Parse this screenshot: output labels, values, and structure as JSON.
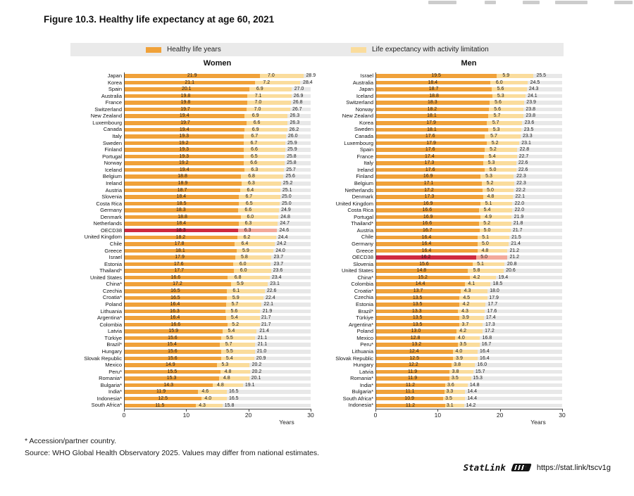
{
  "title": "Figure 10.3. Healthy life expectancy at age 60, 2021",
  "legend": {
    "healthy": "Healthy life years",
    "limitation": "Life expectancy with activity limitation"
  },
  "colors": {
    "healthy": "#F0A139",
    "limitation": "#FADC9C",
    "highlight_healthy": "#CF2A3F",
    "highlight_limitation": "#F3A99B",
    "row_band": "#E8E8E8",
    "legend_bg": "#EAEAEA"
  },
  "footnotes": [
    "* Accession/partner country.",
    "Source: WHO Global Health Observatory 2025. Values may differ from national estimates."
  ],
  "statlink": {
    "label": "StatLink",
    "url": "https://stat.link/tscv1g"
  },
  "chart_data": [
    {
      "type": "bar",
      "orientation": "horizontal",
      "stacked": true,
      "title": "Women",
      "xlabel": "Years",
      "xlim": [
        0,
        30
      ],
      "xticks": [
        0,
        10,
        20,
        30
      ],
      "highlight_row": "OECD38",
      "series_names": [
        "Healthy life years",
        "Life expectancy with activity limitation",
        "Total life expectancy"
      ],
      "rows": [
        [
          "Japan",
          21.9,
          7.0,
          28.9
        ],
        [
          "Korea",
          21.1,
          7.2,
          28.4
        ],
        [
          "Spain",
          20.1,
          6.9,
          27.0
        ],
        [
          "Australia",
          19.8,
          7.1,
          26.9
        ],
        [
          "France",
          19.8,
          7.0,
          26.8
        ],
        [
          "Switzerland",
          19.7,
          7.0,
          26.7
        ],
        [
          "New Zealand",
          19.4,
          6.9,
          26.3
        ],
        [
          "Luxembourg",
          19.7,
          6.6,
          26.3
        ],
        [
          "Canada",
          19.4,
          6.9,
          26.2
        ],
        [
          "Italy",
          19.3,
          6.7,
          26.0
        ],
        [
          "Sweden",
          19.2,
          6.7,
          25.9
        ],
        [
          "Finland",
          19.3,
          6.6,
          25.9
        ],
        [
          "Portugal",
          19.3,
          6.5,
          25.8
        ],
        [
          "Norway",
          19.2,
          6.6,
          25.8
        ],
        [
          "Iceland",
          19.4,
          6.3,
          25.7
        ],
        [
          "Belgium",
          18.8,
          6.8,
          25.6
        ],
        [
          "Ireland",
          18.9,
          6.3,
          25.2
        ],
        [
          "Austria",
          18.7,
          6.4,
          25.1
        ],
        [
          "Slovenia",
          18.4,
          6.7,
          25.0
        ],
        [
          "Costa Rica",
          18.5,
          6.5,
          25.0
        ],
        [
          "Germany",
          18.3,
          6.6,
          24.9
        ],
        [
          "Denmark",
          18.8,
          6.0,
          24.8
        ],
        [
          "Netherlands",
          18.4,
          6.3,
          24.7
        ],
        [
          "OECD38",
          18.3,
          6.3,
          24.6
        ],
        [
          "United Kingdom",
          18.2,
          6.2,
          24.4
        ],
        [
          "Chile",
          17.8,
          6.4,
          24.2
        ],
        [
          "Greece",
          18.1,
          5.9,
          24.0
        ],
        [
          "Israel",
          17.9,
          5.8,
          23.7
        ],
        [
          "Estonia",
          17.6,
          6.0,
          23.7
        ],
        [
          "Thailand*",
          17.7,
          6.0,
          23.6
        ],
        [
          "United States",
          16.6,
          6.8,
          23.4
        ],
        [
          "China*",
          17.2,
          5.9,
          23.1
        ],
        [
          "Czechia",
          16.5,
          6.1,
          22.6
        ],
        [
          "Croatia*",
          16.5,
          5.9,
          22.4
        ],
        [
          "Poland",
          16.4,
          5.7,
          22.1
        ],
        [
          "Lithuania",
          16.3,
          5.6,
          21.9
        ],
        [
          "Argentina*",
          16.4,
          5.4,
          21.7
        ],
        [
          "Colombia",
          16.6,
          5.2,
          21.7
        ],
        [
          "Latvia",
          15.9,
          5.4,
          21.4
        ],
        [
          "Türkiye",
          15.6,
          5.5,
          21.1
        ],
        [
          "Brazil*",
          15.4,
          5.7,
          21.1
        ],
        [
          "Hungary",
          15.6,
          5.5,
          21.0
        ],
        [
          "Slovak Republic",
          15.6,
          5.4,
          20.9
        ],
        [
          "Mexico",
          14.9,
          5.3,
          20.2
        ],
        [
          "Peru*",
          15.5,
          4.8,
          20.2
        ],
        [
          "Romania*",
          15.3,
          4.8,
          20.1
        ],
        [
          "Bulgaria*",
          14.3,
          4.8,
          19.1
        ],
        [
          "India*",
          11.9,
          4.6,
          16.5
        ],
        [
          "Indonesia*",
          12.5,
          4.0,
          16.5
        ],
        [
          "South Africa*",
          11.5,
          4.3,
          15.8
        ]
      ]
    },
    {
      "type": "bar",
      "orientation": "horizontal",
      "stacked": true,
      "title": "Men",
      "xlabel": "Years",
      "xlim": [
        0,
        30
      ],
      "xticks": [
        0,
        10,
        20,
        30
      ],
      "highlight_row": "OECD38",
      "series_names": [
        "Healthy life years",
        "Life expectancy with activity limitation",
        "Total life expectancy"
      ],
      "rows": [
        [
          "Israel",
          19.5,
          5.9,
          25.5
        ],
        [
          "Australia",
          18.4,
          6.0,
          24.5
        ],
        [
          "Japan",
          18.7,
          5.6,
          24.3
        ],
        [
          "Iceland",
          18.8,
          5.3,
          24.1
        ],
        [
          "Switzerland",
          18.3,
          5.6,
          23.9
        ],
        [
          "Norway",
          18.2,
          5.6,
          23.8
        ],
        [
          "New Zealand",
          18.1,
          5.7,
          23.8
        ],
        [
          "Korea",
          17.9,
          5.7,
          23.6
        ],
        [
          "Sweden",
          18.1,
          5.3,
          23.5
        ],
        [
          "Canada",
          17.6,
          5.7,
          23.3
        ],
        [
          "Luxembourg",
          17.9,
          5.2,
          23.1
        ],
        [
          "Spain",
          17.6,
          5.2,
          22.8
        ],
        [
          "France",
          17.4,
          5.4,
          22.7
        ],
        [
          "Italy",
          17.3,
          5.3,
          22.6
        ],
        [
          "Ireland",
          17.6,
          5.0,
          22.6
        ],
        [
          "Finland",
          16.9,
          5.3,
          22.3
        ],
        [
          "Belgium",
          17.1,
          5.2,
          22.3
        ],
        [
          "Netherlands",
          17.2,
          5.0,
          22.2
        ],
        [
          "Denmark",
          17.3,
          4.8,
          22.1
        ],
        [
          "United Kingdom",
          16.9,
          5.1,
          22.0
        ],
        [
          "Costa Rica",
          16.6,
          5.4,
          22.0
        ],
        [
          "Portugal",
          16.9,
          4.9,
          21.9
        ],
        [
          "Thailand*",
          16.6,
          5.2,
          21.8
        ],
        [
          "Austria",
          16.7,
          5.0,
          21.7
        ],
        [
          "Chile",
          16.4,
          5.1,
          21.5
        ],
        [
          "Germany",
          16.4,
          5.0,
          21.4
        ],
        [
          "Greece",
          16.4,
          4.8,
          21.2
        ],
        [
          "OECD38",
          16.2,
          5.0,
          21.2
        ],
        [
          "Slovenia",
          15.6,
          5.1,
          20.8
        ],
        [
          "United States",
          14.8,
          5.8,
          20.6
        ],
        [
          "China*",
          15.2,
          4.2,
          19.4
        ],
        [
          "Colombia",
          14.4,
          4.1,
          18.5
        ],
        [
          "Croatia*",
          13.7,
          4.3,
          18.0
        ],
        [
          "Czechia",
          13.5,
          4.5,
          17.9
        ],
        [
          "Estonia",
          13.5,
          4.2,
          17.7
        ],
        [
          "Brazil*",
          13.3,
          4.3,
          17.6
        ],
        [
          "Türkiye",
          13.5,
          3.9,
          17.4
        ],
        [
          "Argentina*",
          13.5,
          3.7,
          17.3
        ],
        [
          "Poland",
          13.0,
          4.2,
          17.2
        ],
        [
          "Mexico",
          12.8,
          4.0,
          16.8
        ],
        [
          "Peru*",
          13.2,
          3.5,
          16.7
        ],
        [
          "Lithuania",
          12.4,
          4.0,
          16.4
        ],
        [
          "Slovak Republic",
          12.5,
          3.9,
          16.4
        ],
        [
          "Hungary",
          12.2,
          3.8,
          16.0
        ],
        [
          "Latvia",
          11.9,
          3.8,
          15.7
        ],
        [
          "Romania*",
          11.9,
          3.5,
          15.3
        ],
        [
          "India*",
          11.2,
          3.6,
          14.8
        ],
        [
          "Bulgaria*",
          11.1,
          3.3,
          14.4
        ],
        [
          "South Africa*",
          10.9,
          3.5,
          14.4
        ],
        [
          "Indonesia*",
          11.2,
          3.1,
          14.2
        ]
      ]
    }
  ]
}
